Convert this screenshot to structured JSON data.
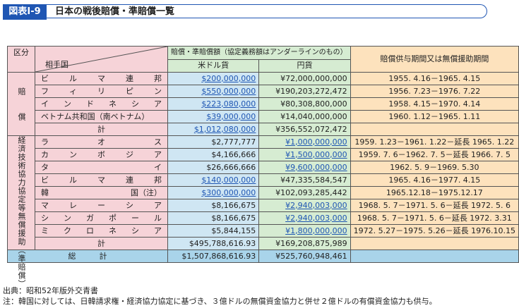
{
  "header": {
    "badge": "図表Ⅰ-9",
    "title": "日本の戦後賠償・準賠償一覧"
  },
  "table": {
    "h_kubun": "区分",
    "h_country": "相手国",
    "h_amount": "賠償・準賠償額（協定義務額はアンダーラインのもの）",
    "h_usd": "米ドル貨",
    "h_yen": "円貨",
    "h_period": "賠償供与期間又は無償援助期間",
    "g1_label": "賠　　償",
    "g2_label": "経済技術協力協定等無償援助（準賠償）",
    "total_label": "計",
    "grand_label": "総　　　計",
    "rows1": [
      {
        "chars": [
          "ビ",
          "ル",
          "マ",
          "連",
          "邦"
        ],
        "usd": "$200,000,000",
        "yen": "¥72,000,000,000",
        "period": "1955. 4.16－1965. 4.15"
      },
      {
        "chars": [
          "フ",
          "ィ",
          "リ",
          "ピ",
          "ン"
        ],
        "usd": "$550,000,000",
        "yen": "¥190,203,272,472",
        "period": "1956. 7.23－1976. 7.22"
      },
      {
        "chars": [
          "イ",
          "ン",
          "ド",
          "ネ",
          "シ",
          "ア"
        ],
        "usd": "$223,080,000",
        "yen": "¥80,308,800,000",
        "period": "1958. 4.15－1970. 4.14"
      },
      {
        "chars": [
          "ベトナム共和国（南ベトナム）"
        ],
        "usd": "$39,000,000",
        "yen": "¥14,040,000,000",
        "period": "1960. 1.12－1965. 1.11"
      }
    ],
    "total1": {
      "usd": "$1,012,080,000",
      "yen": "¥356,552,072,472"
    },
    "rows2": [
      {
        "chars": [
          "ラ",
          "オ",
          "ス"
        ],
        "usd": "$2,777,777",
        "yen": "¥1,000,000,000",
        "period": "1959. 1.23－1961. 1.22－延長 1965. 1.22"
      },
      {
        "chars": [
          "カ",
          "ン",
          "ボ",
          "ジ",
          "ア"
        ],
        "usd": "$4,166,666",
        "yen": "¥1,500,000,000",
        "period": "1959. 7. 6－1962. 7. 5－延長 1966. 7. 5"
      },
      {
        "chars": [
          "タ",
          "イ"
        ],
        "usd": "$26,666,666",
        "yen": "¥9,600,000,000",
        "period": "1962. 5. 9－1969. 5.30"
      },
      {
        "chars": [
          "ビ",
          "ル",
          "マ",
          "連",
          "邦"
        ],
        "usd": "$140,000,000",
        "yen": "¥47,335,584,547",
        "period": "1965. 4.16－1977. 4.15"
      },
      {
        "chars": [
          "韓",
          "国（注）"
        ],
        "usd": "$300,000,000",
        "yen": "¥102,093,285,442",
        "period": "1965.12.18－1975.12.17"
      },
      {
        "chars": [
          "マ",
          "レ",
          "ー",
          "シ",
          "ア"
        ],
        "usd": "$8,166,675",
        "yen": "¥2,940,003,000",
        "period": "1968. 5. 7－1971. 5. 6－延長 1972. 5. 6"
      },
      {
        "chars": [
          "シ",
          "ン",
          "ガ",
          "ポ",
          "ー",
          "ル"
        ],
        "usd": "$8,166,675",
        "yen": "¥2,940,003,000",
        "period": "1968. 5. 7－1971. 5. 6－延長 1972. 3.31"
      },
      {
        "chars": [
          "ミ",
          "ク",
          "ロ",
          "ネ",
          "シ",
          "ア"
        ],
        "usd": "$5,844,155",
        "yen": "¥1,800,000,000",
        "period": "1972. 5.27－1975. 5.26－延長 1976.10.15"
      }
    ],
    "total2": {
      "usd": "$495,788,616.93",
      "yen": "¥169,208,875,989"
    },
    "grand": {
      "usd": "$1,507,868,616.93",
      "yen": "¥525,760,948,461"
    }
  },
  "underline": {
    "rows1_usd": [
      true,
      true,
      true,
      true
    ],
    "rows1_yen": [
      false,
      false,
      false,
      false
    ],
    "rows2_usd": [
      false,
      false,
      false,
      true,
      true,
      false,
      false,
      false
    ],
    "rows2_yen": [
      true,
      true,
      true,
      false,
      false,
      true,
      true,
      true
    ],
    "total1_usd": true
  },
  "footnotes": {
    "source": "出典：昭和52年版外交青書",
    "note": "注：韓国に対しては、日韓請求権・経済協力協定に基づき、３億ドルの無償資金協力と併せ２億ドルの有償資金協力も供与。"
  },
  "colors": {
    "header_blue": "#1f56b3",
    "pink": "#f6d3d8",
    "green": "#d6ecd2",
    "blue": "#cfe6f3",
    "orange": "#fde2bd"
  }
}
